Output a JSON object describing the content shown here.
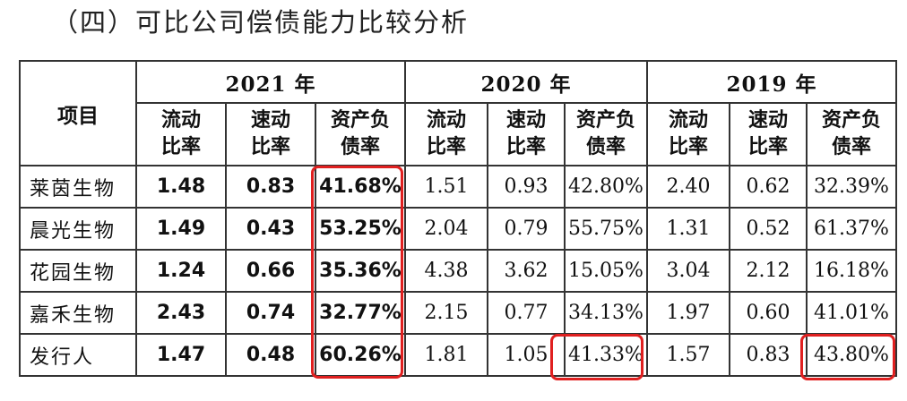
{
  "heading": "（四）可比公司偿债能力比较分析",
  "table": {
    "project_label": "项目",
    "years": [
      "2021 年",
      "2020 年",
      "2019 年"
    ],
    "sub_headers": [
      [
        "流动",
        "比率"
      ],
      [
        "速动",
        "比率"
      ],
      [
        "资产负",
        "债率"
      ]
    ],
    "rows": [
      {
        "name": "莱茵生物",
        "values": [
          "1.48",
          "0.83",
          "41.68%",
          "1.51",
          "0.93",
          "42.80%",
          "2.40",
          "0.62",
          "32.39%"
        ]
      },
      {
        "name": "晨光生物",
        "values": [
          "1.49",
          "0.43",
          "53.25%",
          "2.04",
          "0.79",
          "55.75%",
          "1.31",
          "0.52",
          "61.37%"
        ]
      },
      {
        "name": "花园生物",
        "values": [
          "1.24",
          "0.66",
          "35.36%",
          "4.38",
          "3.62",
          "15.05%",
          "3.04",
          "2.12",
          "16.18%"
        ]
      },
      {
        "name": "嘉禾生物",
        "values": [
          "2.43",
          "0.74",
          "32.77%",
          "2.15",
          "0.77",
          "34.13%",
          "1.97",
          "0.60",
          "41.01%"
        ]
      },
      {
        "name": "发行人",
        "values": [
          "1.47",
          "0.48",
          "60.26%",
          "1.81",
          "1.05",
          "41.33%",
          "1.57",
          "0.83",
          "43.80%"
        ]
      }
    ]
  },
  "highlight_color": "#e02020"
}
